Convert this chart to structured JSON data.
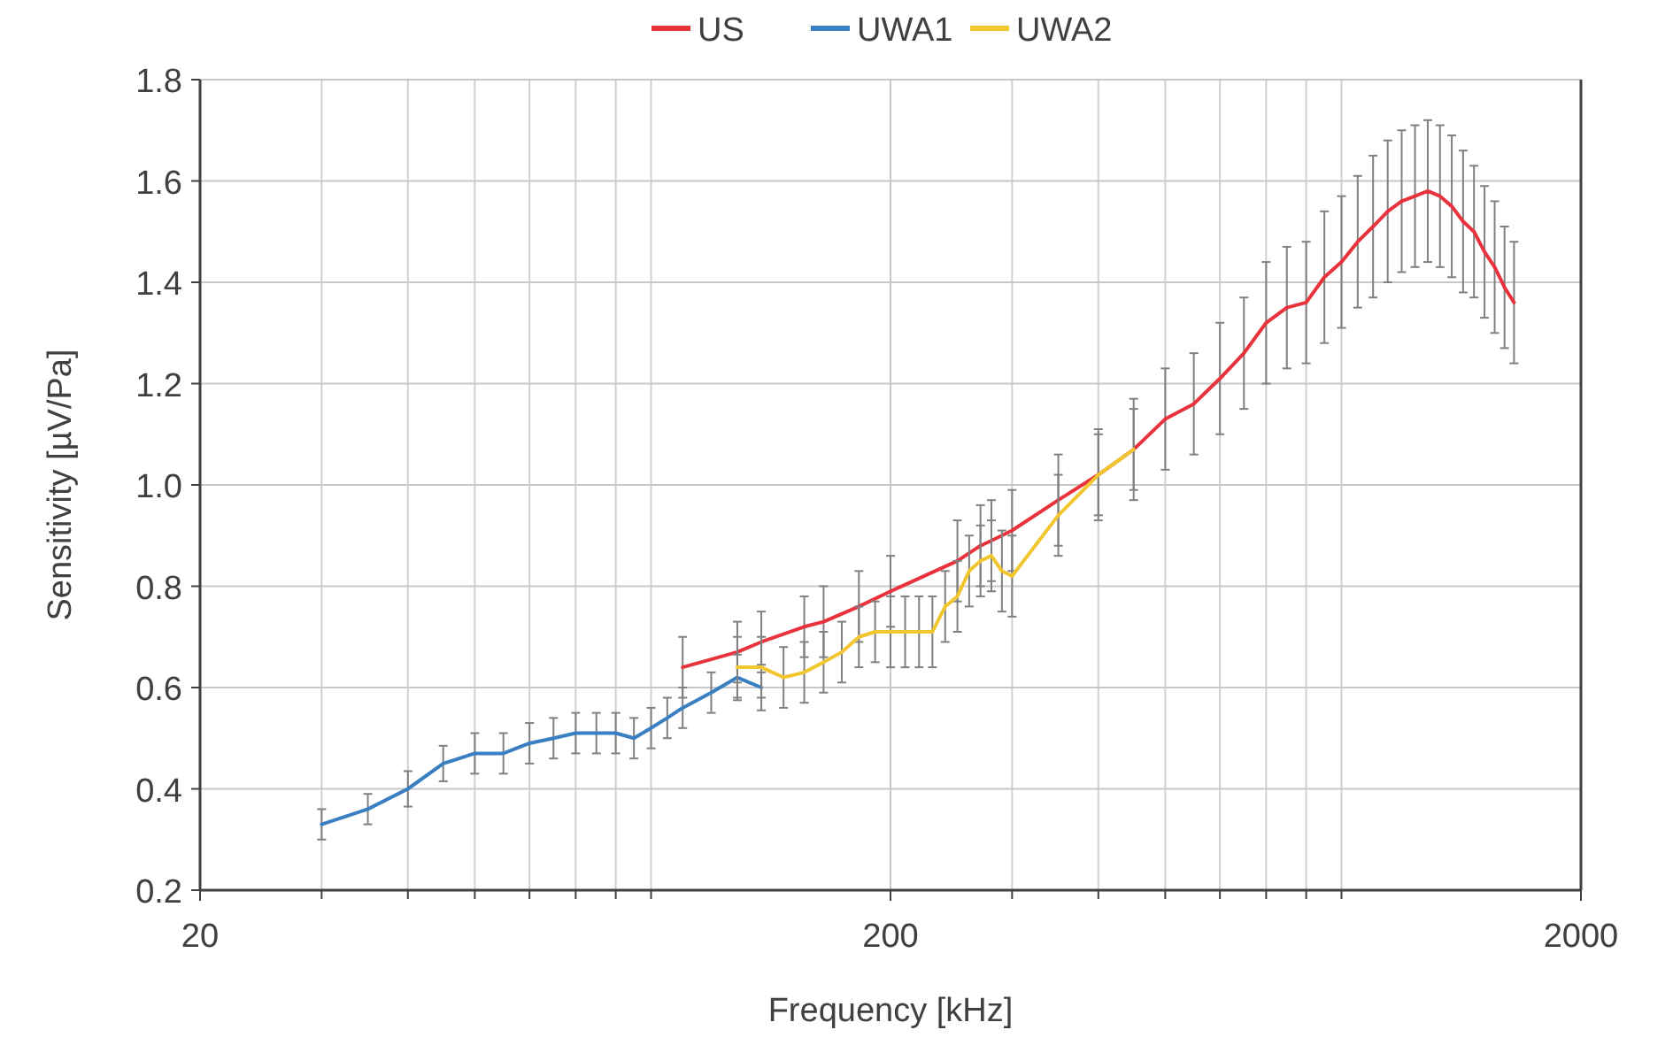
{
  "chart_data": {
    "type": "line",
    "xlabel": "Frequency [kHz]",
    "ylabel": "Sensitivity [µV/Pa]",
    "log": "x",
    "xlim": [
      20,
      2000
    ],
    "xticks": [
      20,
      200,
      2000
    ],
    "ylim": [
      0.2,
      1.8
    ],
    "yticks": [
      {
        "value": 0.2,
        "label": "0.2"
      },
      {
        "value": 0.4,
        "label": "0.4"
      },
      {
        "value": 0.6,
        "label": "0.6"
      },
      {
        "value": 0.8,
        "label": "0.8"
      },
      {
        "value": 1.0,
        "label": "1.0"
      },
      {
        "value": 1.2,
        "label": "1.2"
      },
      {
        "value": 1.4,
        "label": "1.4"
      },
      {
        "value": 1.6,
        "label": "1.6"
      },
      {
        "value": 1.8,
        "label": "1.8"
      }
    ],
    "grid": true,
    "legend": "top",
    "marker": "none",
    "line_style": "solid",
    "series": [
      {
        "name": "US",
        "color": "#e8323c",
        "x": [
          100,
          120,
          130,
          150,
          160,
          180,
          200,
          250,
          270,
          280,
          300,
          350,
          400,
          450,
          500,
          550,
          600,
          650,
          700,
          750,
          800,
          850,
          900,
          950,
          1000,
          1050,
          1100,
          1150,
          1200,
          1250,
          1300,
          1350,
          1400,
          1450,
          1500,
          1550,
          1600
        ],
        "values": [
          0.64,
          0.67,
          0.69,
          0.72,
          0.73,
          0.76,
          0.79,
          0.85,
          0.88,
          0.89,
          0.91,
          0.97,
          1.02,
          1.07,
          1.13,
          1.16,
          1.21,
          1.26,
          1.32,
          1.35,
          1.36,
          1.41,
          1.44,
          1.48,
          1.51,
          1.54,
          1.56,
          1.57,
          1.58,
          1.57,
          1.55,
          1.52,
          1.5,
          1.46,
          1.43,
          1.39,
          1.36
        ],
        "errors": [
          0.06,
          0.06,
          0.06,
          0.06,
          0.07,
          0.07,
          0.07,
          0.08,
          0.08,
          0.08,
          0.08,
          0.09,
          0.09,
          0.1,
          0.1,
          0.1,
          0.11,
          0.11,
          0.12,
          0.12,
          0.12,
          0.13,
          0.13,
          0.13,
          0.14,
          0.14,
          0.14,
          0.14,
          0.14,
          0.14,
          0.14,
          0.14,
          0.13,
          0.13,
          0.13,
          0.12,
          0.12
        ]
      },
      {
        "name": "UWA1",
        "color": "#3a7fc1",
        "x": [
          30,
          35,
          40,
          45,
          50,
          55,
          60,
          65,
          70,
          75,
          80,
          85,
          90,
          95,
          100,
          110,
          120,
          130
        ],
        "values": [
          0.33,
          0.36,
          0.4,
          0.45,
          0.47,
          0.47,
          0.49,
          0.5,
          0.51,
          0.51,
          0.51,
          0.5,
          0.52,
          0.54,
          0.56,
          0.59,
          0.62,
          0.6
        ],
        "errors": [
          0.03,
          0.03,
          0.035,
          0.035,
          0.04,
          0.04,
          0.04,
          0.04,
          0.04,
          0.04,
          0.04,
          0.04,
          0.04,
          0.04,
          0.04,
          0.04,
          0.045,
          0.045
        ]
      },
      {
        "name": "UWA2",
        "color": "#f2c62e",
        "x": [
          120,
          130,
          140,
          150,
          160,
          170,
          180,
          190,
          200,
          210,
          220,
          230,
          240,
          250,
          260,
          270,
          280,
          290,
          300,
          350,
          400,
          450
        ],
        "values": [
          0.64,
          0.64,
          0.62,
          0.63,
          0.65,
          0.67,
          0.7,
          0.71,
          0.71,
          0.71,
          0.71,
          0.71,
          0.76,
          0.78,
          0.83,
          0.85,
          0.86,
          0.83,
          0.82,
          0.94,
          1.02,
          1.07
        ],
        "errors": [
          0.06,
          0.06,
          0.06,
          0.06,
          0.06,
          0.06,
          0.06,
          0.06,
          0.07,
          0.07,
          0.07,
          0.07,
          0.07,
          0.07,
          0.07,
          0.07,
          0.07,
          0.08,
          0.08,
          0.08,
          0.08,
          0.08
        ]
      }
    ]
  }
}
